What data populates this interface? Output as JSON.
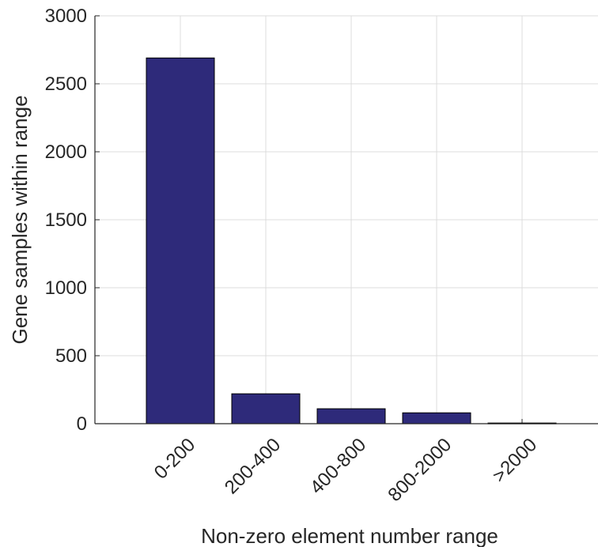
{
  "chart_data": {
    "type": "bar",
    "title": "",
    "xlabel": "Non-zero element number range",
    "ylabel": "Gene samples within range",
    "categories": [
      "0-200",
      "200-400",
      "400-800",
      "800-2000",
      ">2000"
    ],
    "values": [
      2690,
      220,
      110,
      80,
      5
    ],
    "ylim": [
      0,
      3000
    ],
    "yticks": [
      0,
      500,
      1000,
      1500,
      2000,
      2500,
      3000
    ],
    "grid": true,
    "bar_color": "#2e2a7a",
    "legend": "none"
  }
}
